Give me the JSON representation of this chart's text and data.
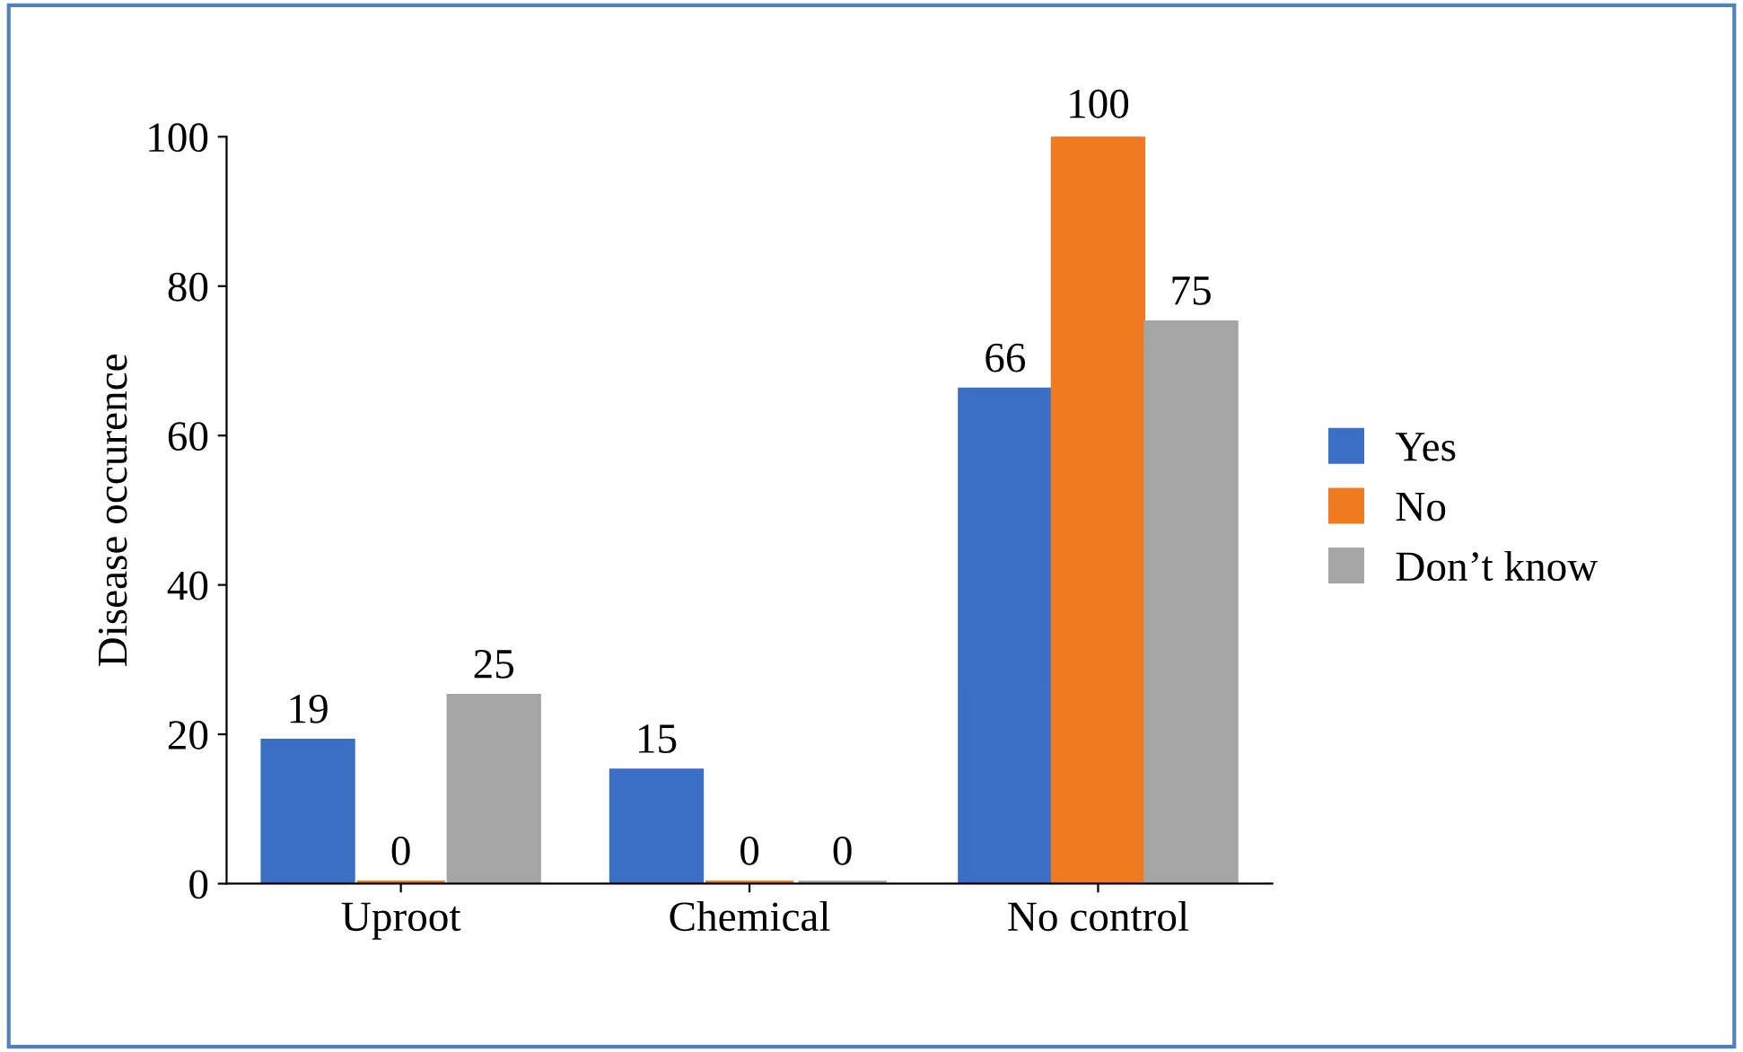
{
  "chart_data": {
    "type": "bar",
    "ylabel": "Disease occurence",
    "categories": [
      "Uproot",
      "Chemical",
      "No control"
    ],
    "series": [
      {
        "name": "Yes",
        "color": "#3b6fc6",
        "values": [
          19,
          15,
          66
        ]
      },
      {
        "name": "No",
        "color": "#f07a22",
        "values": [
          0,
          0,
          100
        ]
      },
      {
        "name": "Don’t know",
        "color": "#a5a5a5",
        "values": [
          25,
          0,
          75
        ]
      }
    ],
    "ylim": [
      0,
      100
    ],
    "yticks": [
      0,
      20,
      40,
      60,
      80,
      100
    ],
    "grid": false,
    "legend": "right",
    "data_labels": true
  }
}
